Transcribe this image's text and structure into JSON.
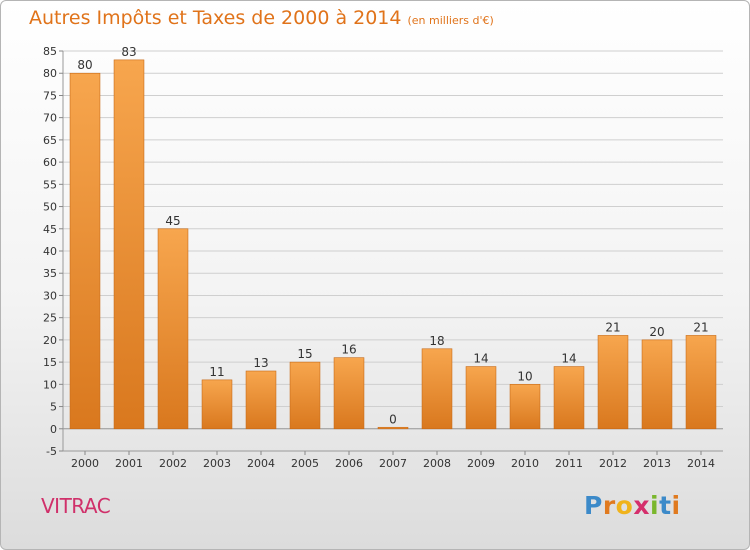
{
  "header": {
    "title": "Autres Impôts et Taxes de 2000 à 2014",
    "unit": "(en milliers d'€)"
  },
  "footer": {
    "commune": "VITRAC",
    "logo_letters": [
      "P",
      "r",
      "o",
      "x",
      "i",
      "t",
      "i"
    ],
    "logo_colors": [
      "#3c8ac9",
      "#e07a1f",
      "#f0b31c",
      "#d52f6c",
      "#7ab72d",
      "#3c8ac9",
      "#e07a1f"
    ]
  },
  "colors": {
    "bar_top": "#f7a64e",
    "bar_bottom": "#d9781e",
    "bar_edge": "#c76a16",
    "grid": "#cfcfcf",
    "axis_text": "#333333",
    "title": "#e0731a",
    "commune": "#d0306a"
  },
  "chart_data": {
    "type": "bar",
    "title": "Autres Impôts et Taxes de 2000 à 2014",
    "subtitle": "(en milliers d'€)",
    "xlabel": "",
    "ylabel": "",
    "categories": [
      "2000",
      "2001",
      "2002",
      "2003",
      "2004",
      "2005",
      "2006",
      "2007",
      "2008",
      "2009",
      "2010",
      "2011",
      "2012",
      "2013",
      "2014"
    ],
    "values": [
      80,
      83,
      45,
      11,
      13,
      15,
      16,
      0,
      18,
      14,
      10,
      14,
      21,
      20,
      21
    ],
    "ylim": [
      -5,
      85
    ],
    "yticks": [
      -5,
      0,
      5,
      10,
      15,
      20,
      25,
      30,
      35,
      40,
      45,
      50,
      55,
      60,
      65,
      70,
      75,
      80,
      85
    ],
    "grid": true,
    "legend": "none"
  }
}
